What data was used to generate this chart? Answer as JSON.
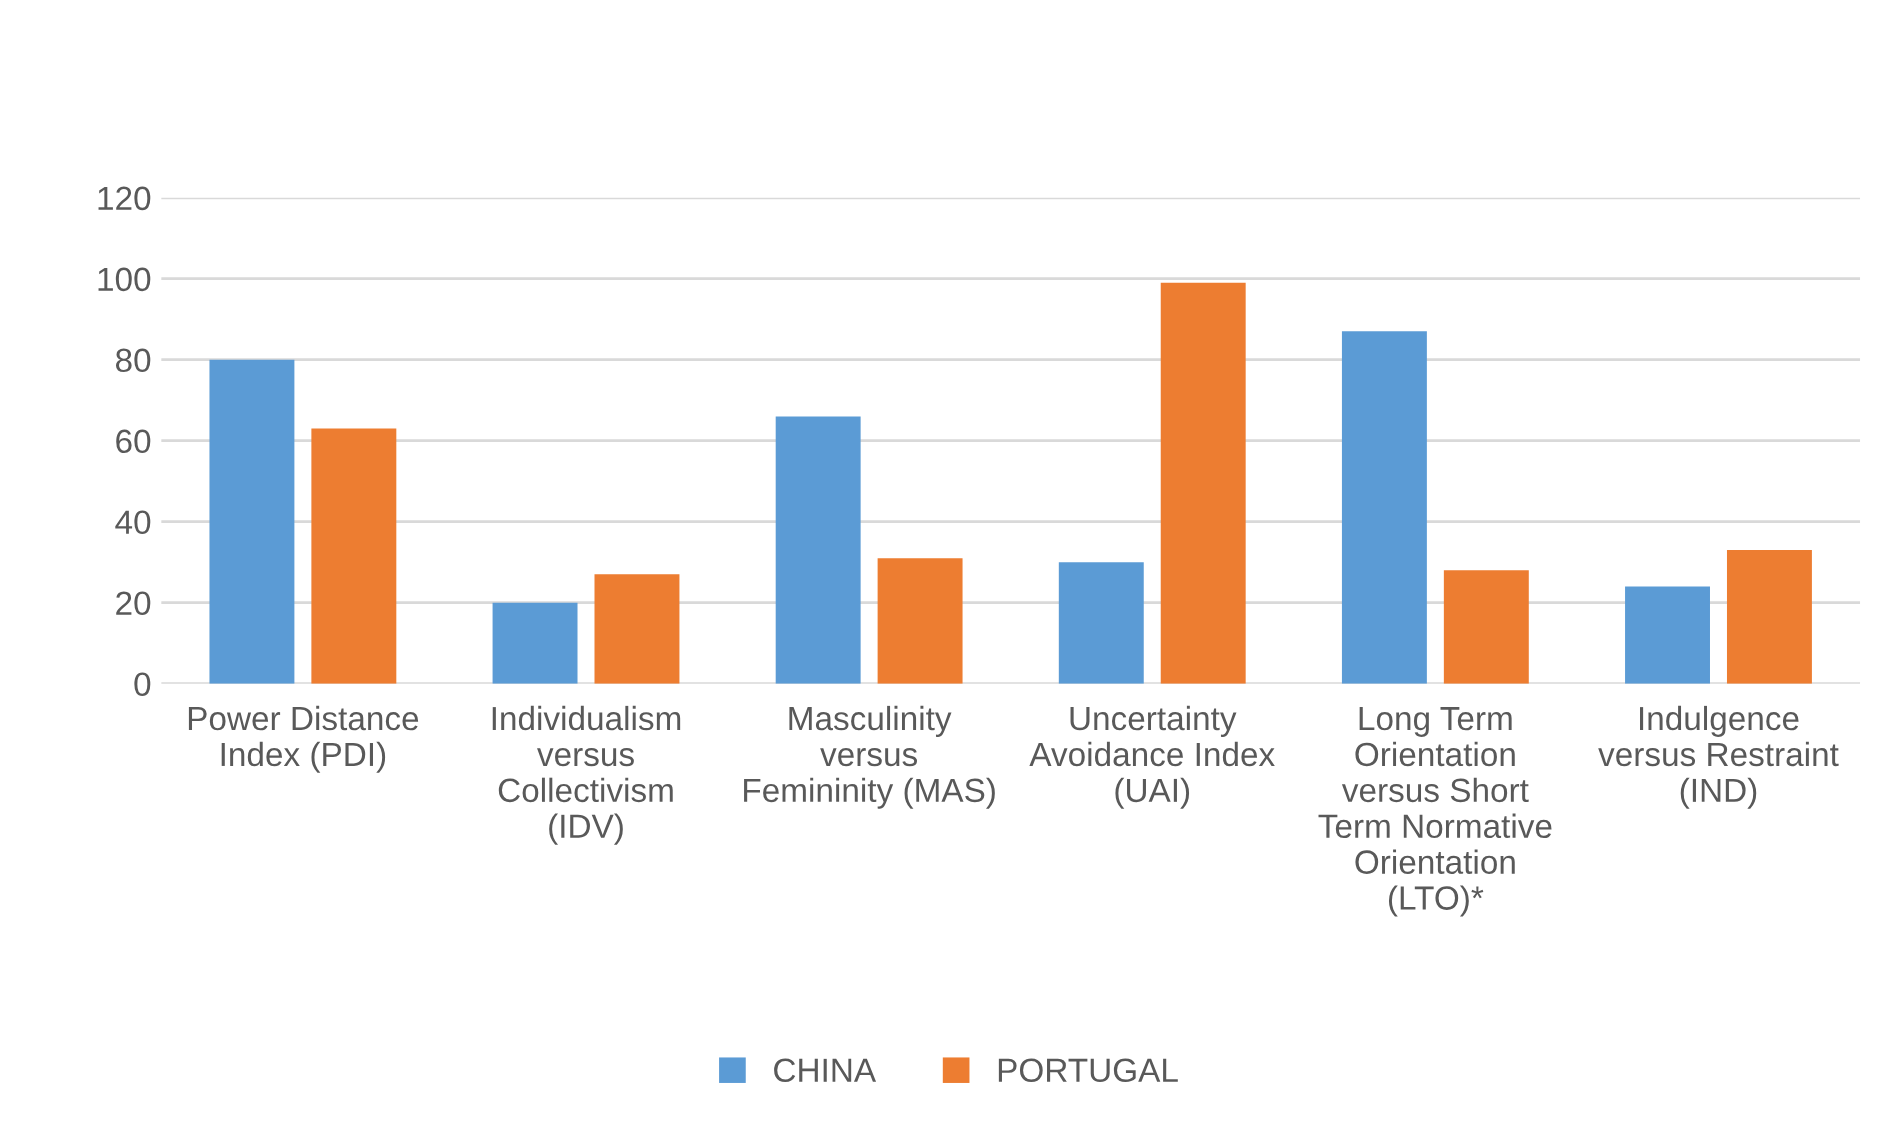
{
  "chart_data": {
    "type": "bar",
    "categories": [
      "Power Distance Index (PDI)",
      "Individualism versus Collectivism (IDV)",
      "Masculinity versus Femininity (MAS)",
      "Uncertainty Avoidance Index (UAI)",
      "Long Term Orientation versus Short Term Normative Orientation (LTO)*",
      "Indulgence versus Restraint (IND)"
    ],
    "series": [
      {
        "name": "CHINA",
        "color": "#5b9bd5",
        "values": [
          80,
          20,
          66,
          30,
          87,
          24
        ]
      },
      {
        "name": "PORTUGAL",
        "color": "#ed7d31",
        "values": [
          63,
          27,
          31,
          99,
          28,
          33
        ]
      }
    ],
    "ylim": [
      0,
      120
    ],
    "yticks": [
      0,
      20,
      40,
      60,
      80,
      100,
      120
    ],
    "grid": "y",
    "legend": "bottom"
  }
}
